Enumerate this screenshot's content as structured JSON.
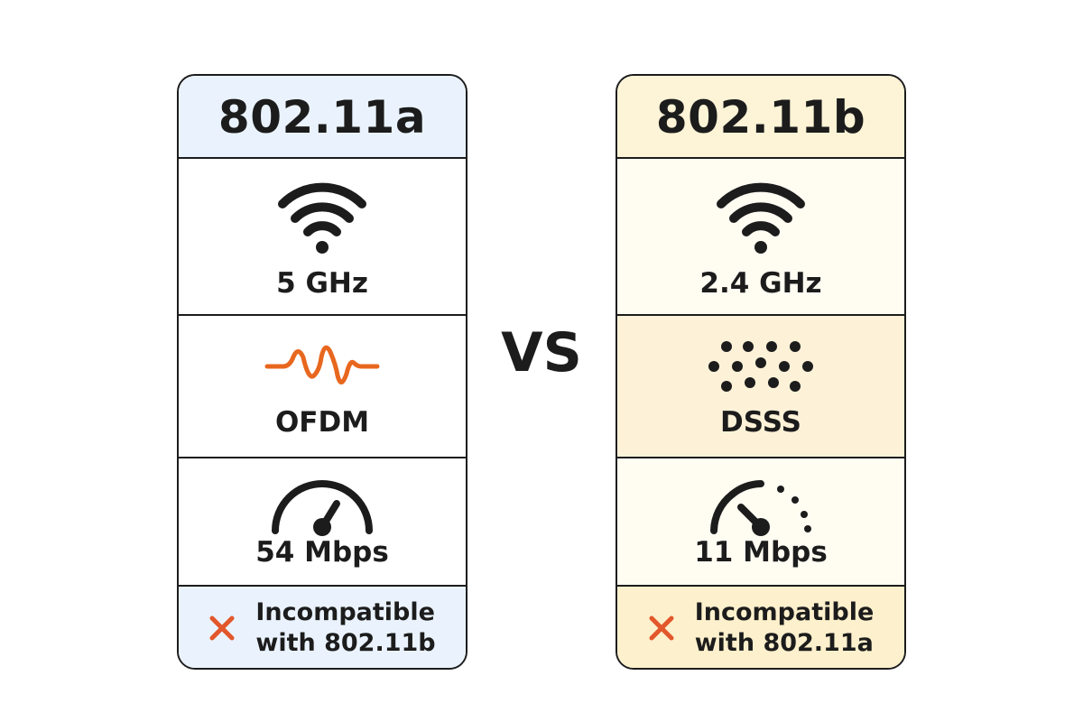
{
  "colors": {
    "ink": "#1c1c1c",
    "card_a_tint": "#eaf3fd",
    "card_b_tint": "#fdf3d6",
    "ofdm_wave": "#e8671e",
    "x_mark": "#e2572b"
  },
  "vs_label": "VS",
  "card_a": {
    "title": "802.11a",
    "frequency": {
      "icon": "wifi-icon",
      "label": "5 GHz"
    },
    "modulation": {
      "icon": "waveform-icon",
      "label": "OFDM"
    },
    "speed": {
      "icon": "speedometer-icon",
      "label": "54 Mbps"
    },
    "compatibility": {
      "icon": "x-mark-icon",
      "line1": "Incompatible",
      "line2": "with 802.11b"
    }
  },
  "card_b": {
    "title": "802.11b",
    "frequency": {
      "icon": "wifi-icon",
      "label": "2.4 GHz"
    },
    "modulation": {
      "icon": "dots-icon",
      "label": "DSSS"
    },
    "speed": {
      "icon": "speedometer-icon",
      "label": "11 Mbps"
    },
    "compatibility": {
      "icon": "x-mark-icon",
      "line1": "Incompatible",
      "line2": "with 802.11a"
    }
  }
}
